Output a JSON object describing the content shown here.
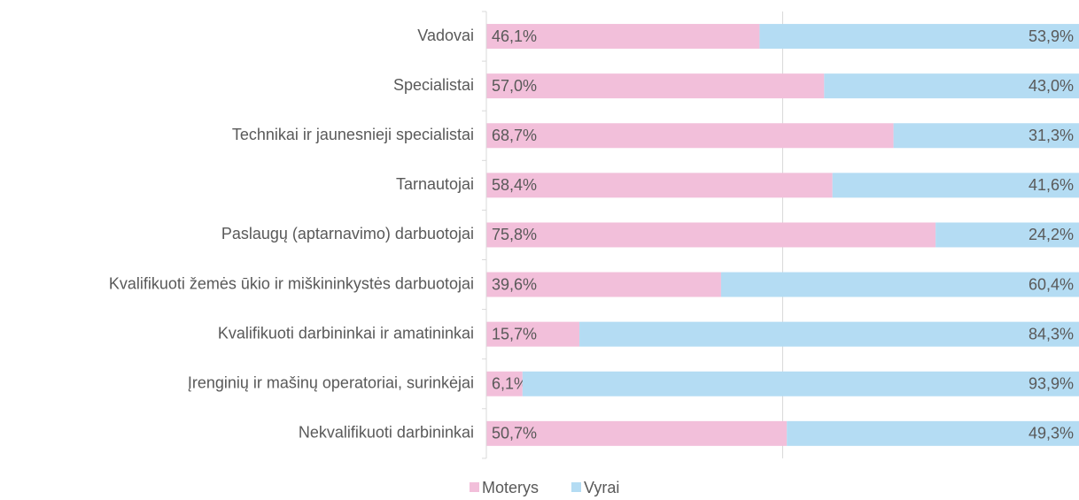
{
  "chart_data": {
    "type": "stacked_barh",
    "categories": [
      "Vadovai",
      "Specialistai",
      "Technikai ir jaunesnieji specialistai",
      "Tarnautojai",
      "Paslaugų (aptarnavimo) darbuotojai",
      "Kvalifikuoti žemės ūkio ir miškininkystės darbuotojai",
      "Kvalifikuoti darbininkai ir amatininkai",
      "Įrenginių ir mašinų operatoriai, surinkėjai",
      "Nekvalifikuoti darbininkai"
    ],
    "series": [
      {
        "name": "Moterys",
        "color": "#f2bfda",
        "values": [
          46.1,
          57.0,
          68.7,
          58.4,
          75.8,
          39.6,
          15.7,
          6.1,
          50.7
        ],
        "value_labels": [
          "46,1%",
          "57,0%",
          "68,7%",
          "58,4%",
          "75,8%",
          "39,6%",
          "15,7%",
          "6,1%",
          "50,7%"
        ]
      },
      {
        "name": "Vyrai",
        "color": "#b4dcf3",
        "values": [
          53.9,
          43.0,
          31.3,
          41.6,
          24.2,
          60.4,
          84.3,
          93.9,
          49.3
        ],
        "value_labels": [
          "53,9%",
          "43,0%",
          "31,3%",
          "41,6%",
          "24,2%",
          "60,4%",
          "84,3%",
          "93,9%",
          "49,3%"
        ]
      }
    ],
    "xlim": [
      0,
      100
    ],
    "xticks": [
      0,
      50,
      100
    ],
    "grid": true,
    "legend": "bottom"
  }
}
